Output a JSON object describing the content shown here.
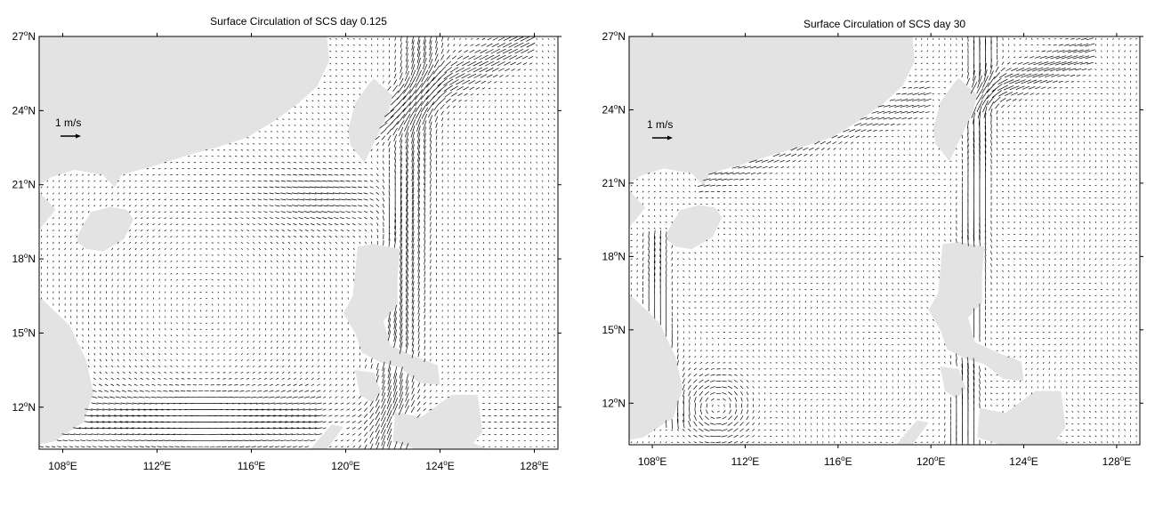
{
  "panels": [
    {
      "title": "Surface Circulation of SCS day 0.125",
      "scale_label": "1 m/s",
      "lat_ticks": [
        {
          "deg": "27",
          "hemi": "N"
        },
        {
          "deg": "24",
          "hemi": "N"
        },
        {
          "deg": "21",
          "hemi": "N"
        },
        {
          "deg": "18",
          "hemi": "N"
        },
        {
          "deg": "15",
          "hemi": "N"
        },
        {
          "deg": "12",
          "hemi": "N"
        }
      ],
      "lon_ticks": [
        {
          "deg": "108",
          "hemi": "E"
        },
        {
          "deg": "112",
          "hemi": "E"
        },
        {
          "deg": "116",
          "hemi": "E"
        },
        {
          "deg": "120",
          "hemi": "E"
        },
        {
          "deg": "124",
          "hemi": "E"
        },
        {
          "deg": "128",
          "hemi": "E"
        }
      ]
    },
    {
      "title": "Surface Circulation of SCS day 30",
      "scale_label": "1 m/s",
      "lat_ticks": [
        {
          "deg": "27",
          "hemi": "N"
        },
        {
          "deg": "24",
          "hemi": "N"
        },
        {
          "deg": "21",
          "hemi": "N"
        },
        {
          "deg": "18",
          "hemi": "N"
        },
        {
          "deg": "15",
          "hemi": "N"
        },
        {
          "deg": "12",
          "hemi": "N"
        }
      ],
      "lon_ticks": [
        {
          "deg": "108",
          "hemi": "E"
        },
        {
          "deg": "112",
          "hemi": "E"
        },
        {
          "deg": "116",
          "hemi": "E"
        },
        {
          "deg": "120",
          "hemi": "E"
        },
        {
          "deg": "124",
          "hemi": "E"
        },
        {
          "deg": "128",
          "hemi": "E"
        }
      ]
    }
  ],
  "colors": {
    "land": "#e3e3e3",
    "ocean": "#ffffff",
    "vectors": "#000000"
  }
}
